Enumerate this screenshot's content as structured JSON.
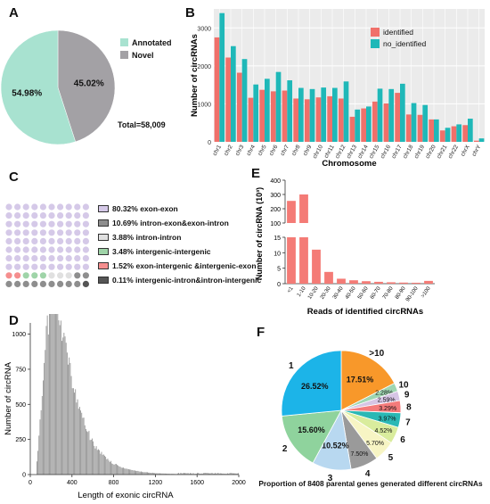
{
  "panels": {
    "A": "A",
    "B": "B",
    "C": "C",
    "D": "D",
    "E": "E",
    "F": "F"
  },
  "chart_data": [
    {
      "id": "A",
      "type": "pie",
      "slices": [
        {
          "name": "Annotated",
          "value": 54.98,
          "label": "54.98%",
          "color": "#a8e2d0"
        },
        {
          "name": "Novel",
          "value": 45.02,
          "label": "45.02%",
          "color": "#a3a1a5"
        }
      ],
      "total_label": "Total=58,009"
    },
    {
      "id": "B",
      "type": "bar",
      "ylabel": "Number of circRNAs",
      "xlabel": "Chromosome",
      "ylim": [
        0,
        3500
      ],
      "yticks": [
        0,
        1000,
        2000,
        3000
      ],
      "categories": [
        "chr1",
        "chr2",
        "chr3",
        "chr4",
        "chr5",
        "chr6",
        "chr7",
        "chr8",
        "chr9",
        "chr10",
        "chr11",
        "chr12",
        "chr13",
        "chr14",
        "chr15",
        "chr16",
        "chr17",
        "chr18",
        "chr19",
        "chr20",
        "chr21",
        "chr22",
        "chrX",
        "chrY"
      ],
      "series": [
        {
          "name": "identified",
          "color": "#f0706a",
          "values": [
            2750,
            2220,
            1820,
            1160,
            1370,
            1330,
            1350,
            1140,
            1120,
            1170,
            1200,
            1140,
            660,
            880,
            1060,
            1010,
            1290,
            720,
            710,
            590,
            300,
            410,
            440,
            30
          ]
        },
        {
          "name": "no_identified",
          "color": "#1fb8b8",
          "values": [
            3390,
            2520,
            2180,
            1510,
            1660,
            1840,
            1620,
            1420,
            1390,
            1430,
            1420,
            1590,
            850,
            930,
            1400,
            1390,
            1530,
            1020,
            970,
            590,
            370,
            460,
            610,
            90
          ]
        }
      ],
      "legend_position": "top-right"
    },
    {
      "id": "C",
      "type": "waffle",
      "categories": [
        {
          "label": "80.32%",
          "name": "exon-exon",
          "color": "#d5c9e8"
        },
        {
          "label": "10.69%",
          "name": "intron-exon&exon-intron",
          "color": "#8e8e8e"
        },
        {
          "label": "3.88%",
          "name": "intron-intron",
          "color": "#e0e0e0"
        },
        {
          "label": "3.48%",
          "name": "intergenic-intergenic",
          "color": "#9fd4a8"
        },
        {
          "label": "1.52%",
          "name": "exon-intergenic &intergenic-exon",
          "color": "#f58e8e"
        },
        {
          "label": "0.11%",
          "name": "intergenic-intron&intron-intergenic",
          "color": "#555555"
        }
      ]
    },
    {
      "id": "E",
      "type": "bar",
      "ylabel": "Number of circRNA (10³)",
      "xlabel": "Reads of identified circRNAs",
      "axis_break": [
        15,
        100
      ],
      "yticks_lower": [
        0,
        5,
        10,
        15
      ],
      "yticks_upper": [
        100,
        200,
        300,
        400
      ],
      "categories": [
        "<1",
        "1-10",
        "10-20",
        "20-30",
        "30-40",
        "40-50",
        "50-60",
        "60-70",
        "70-80",
        "80-90",
        "90-100",
        ">100"
      ],
      "values": [
        255,
        300,
        11,
        3.8,
        1.6,
        1.1,
        0.8,
        0.6,
        0.45,
        0.35,
        0.3,
        0.9
      ],
      "color": "#f47b76"
    },
    {
      "id": "D",
      "type": "histogram",
      "ylabel": "Number of circRNA",
      "xlabel": "Length of exonic circRNA",
      "xlim": [
        0,
        2000
      ],
      "ylim": [
        0,
        1080
      ],
      "xticks": [
        0,
        400,
        800,
        1200,
        1600,
        2000
      ],
      "yticks": [
        0,
        250,
        500,
        750,
        1000
      ],
      "peak": {
        "x": 300,
        "y": 1040
      },
      "color": "#8c8c8c"
    },
    {
      "id": "F",
      "type": "pie",
      "title": "Proportion of 8408 parental genes generated different circRNAs",
      "slices": [
        {
          "name": ">10",
          "value": 17.51,
          "label": "17.51%",
          "color": "#f8982a"
        },
        {
          "name": "10",
          "value": 2.28,
          "label": "2.28%",
          "color": "#9ed6b2"
        },
        {
          "name": "9",
          "value": 2.59,
          "label": "2.59%",
          "color": "#d6c5e5"
        },
        {
          "name": "8",
          "value": 3.29,
          "label": "3.29%",
          "color": "#f47b7b"
        },
        {
          "name": "7",
          "value": 3.97,
          "label": "3.97%",
          "color": "#2ab8b5"
        },
        {
          "name": "6",
          "value": 4.52,
          "label": "4.52%",
          "color": "#d9ec9d"
        },
        {
          "name": "5",
          "value": 5.7,
          "label": "5.70%",
          "color": "#f7f5c4"
        },
        {
          "name": "4",
          "value": 7.5,
          "label": "7.50%",
          "color": "#9a9a9a"
        },
        {
          "name": "3",
          "value": 10.52,
          "label": "10.52%",
          "color": "#b8d8f0"
        },
        {
          "name": "2",
          "value": 15.6,
          "label": "15.60%",
          "color": "#8fd39d"
        },
        {
          "name": "1",
          "value": 26.52,
          "label": "26.52%",
          "color": "#1cb4e8"
        }
      ]
    }
  ]
}
